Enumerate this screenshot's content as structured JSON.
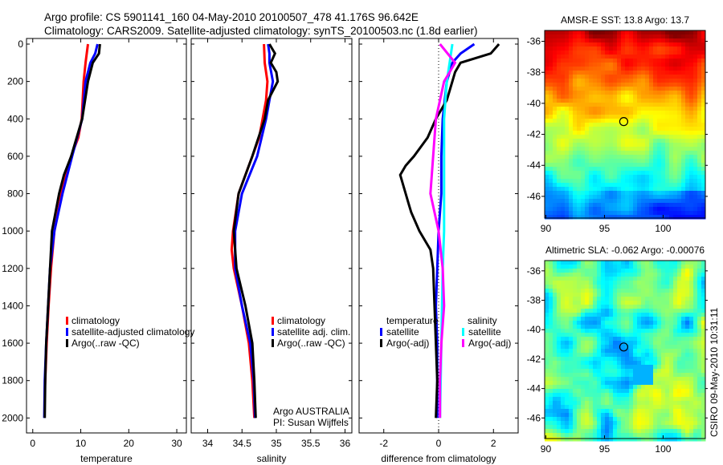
{
  "title_line1": "Argo profile: CS 5901141_160 04-May-2010 20100507_478 41.176S 96.642E",
  "title_line2": "Climatology: CARS2009. Satellite-adjusted climatology: synTS_20100503.nc (1.8d earlier)",
  "side_label": "CSIRO 09-May-2010 10:31:11",
  "chart_data": [
    {
      "type": "line",
      "id": "temp",
      "xlabel": "temperature",
      "ylabel": "",
      "xlim": [
        -1.3,
        32
      ],
      "ylim": [
        2080,
        -30
      ],
      "xticks": [
        0,
        10,
        20,
        30
      ],
      "yticks": [
        0,
        200,
        400,
        600,
        800,
        1000,
        1200,
        1400,
        1600,
        1800,
        2000
      ],
      "legend": [
        "climatology",
        "satellite-adjusted climatology",
        "Argo(..raw -QC)"
      ],
      "series": [
        {
          "name": "climatology",
          "color": "#ff0000",
          "points": [
            [
              11.5,
              0
            ],
            [
              11,
              100
            ],
            [
              10.6,
              200
            ],
            [
              10.2,
              400
            ],
            [
              9.5,
              500
            ],
            [
              8,
              600
            ],
            [
              6,
              800
            ],
            [
              4.5,
              1000
            ],
            [
              3.8,
              1200
            ],
            [
              3.3,
              1400
            ],
            [
              2.9,
              1600
            ],
            [
              2.6,
              1800
            ],
            [
              2.5,
              1850
            ]
          ]
        },
        {
          "name": "satellite-adjusted climatology",
          "color": "#0000ff",
          "points": [
            [
              13.5,
              0
            ],
            [
              13,
              50
            ],
            [
              12,
              100
            ],
            [
              11,
              200
            ],
            [
              10.3,
              400
            ],
            [
              8.2,
              600
            ],
            [
              6.2,
              800
            ],
            [
              4.5,
              1000
            ],
            [
              3.6,
              1200
            ],
            [
              3.2,
              1400
            ],
            [
              2.8,
              1600
            ],
            [
              2.5,
              1800
            ],
            [
              2.4,
              2000
            ]
          ]
        },
        {
          "name": "Argo(..raw -QC)",
          "color": "#000000",
          "points": [
            [
              14,
              0
            ],
            [
              13.8,
              50
            ],
            [
              12.5,
              100
            ],
            [
              11.5,
              200
            ],
            [
              10.3,
              400
            ],
            [
              8,
              600
            ],
            [
              6.5,
              700
            ],
            [
              5.5,
              800
            ],
            [
              4,
              1000
            ],
            [
              3.8,
              1100
            ],
            [
              3.6,
              1200
            ],
            [
              3.2,
              1400
            ],
            [
              2.8,
              1600
            ],
            [
              2.6,
              1800
            ],
            [
              2.5,
              2000
            ]
          ]
        }
      ]
    },
    {
      "type": "line",
      "id": "sal",
      "xlabel": "salinity",
      "xlim": [
        33.76,
        36.1
      ],
      "ylim": [
        2080,
        -30
      ],
      "xticks": [
        34,
        34.5,
        35,
        35.5,
        36
      ],
      "yticks": [],
      "legend": [
        "climatology",
        "satellite adj. clim.",
        "Argo(..raw -QC)"
      ],
      "annotation": [
        "Argo AUSTRALIA",
        "PI: Susan Wijffels"
      ],
      "series": [
        {
          "name": "climatology",
          "color": "#ff0000",
          "points": [
            [
              34.82,
              0
            ],
            [
              34.83,
              100
            ],
            [
              34.87,
              200
            ],
            [
              34.85,
              300
            ],
            [
              34.8,
              400
            ],
            [
              34.75,
              500
            ],
            [
              34.65,
              600
            ],
            [
              34.45,
              800
            ],
            [
              34.37,
              1000
            ],
            [
              34.35,
              1100
            ],
            [
              34.38,
              1200
            ],
            [
              34.5,
              1400
            ],
            [
              34.6,
              1600
            ],
            [
              34.65,
              1800
            ],
            [
              34.68,
              2000
            ]
          ]
        },
        {
          "name": "satellite adj. clim.",
          "color": "#0000ff",
          "points": [
            [
              34.88,
              0
            ],
            [
              34.9,
              50
            ],
            [
              34.9,
              100
            ],
            [
              34.95,
              200
            ],
            [
              34.9,
              300
            ],
            [
              34.85,
              400
            ],
            [
              34.72,
              600
            ],
            [
              34.5,
              800
            ],
            [
              34.4,
              1000
            ],
            [
              34.4,
              1200
            ],
            [
              34.5,
              1400
            ],
            [
              34.62,
              1600
            ],
            [
              34.67,
              1800
            ],
            [
              34.69,
              2000
            ]
          ]
        },
        {
          "name": "Argo(..raw -QC)",
          "color": "#000000",
          "points": [
            [
              34.9,
              0
            ],
            [
              34.98,
              50
            ],
            [
              34.92,
              100
            ],
            [
              35.0,
              150
            ],
            [
              35.02,
              200
            ],
            [
              34.88,
              300
            ],
            [
              34.83,
              400
            ],
            [
              34.65,
              600
            ],
            [
              34.45,
              800
            ],
            [
              34.38,
              1000
            ],
            [
              34.42,
              1200
            ],
            [
              34.55,
              1400
            ],
            [
              34.65,
              1600
            ],
            [
              34.68,
              1800
            ],
            [
              34.7,
              2000
            ]
          ]
        }
      ]
    },
    {
      "type": "line",
      "id": "diff",
      "xlabel": "difference from climatology",
      "xlim": [
        -2.9,
        2.9
      ],
      "ylim": [
        2080,
        -30
      ],
      "xticks": [
        -2,
        0,
        2
      ],
      "yticks": [],
      "legend_headers": [
        "temperature",
        "salinity"
      ],
      "legend": [
        "satellite",
        "Argo(-adj)",
        "satellite",
        "Argo(-adj)"
      ],
      "series": [
        {
          "name": "temperature satellite",
          "color": "#0000ff",
          "points": [
            [
              1.3,
              0
            ],
            [
              0.8,
              50
            ],
            [
              0.5,
              100
            ],
            [
              0.3,
              200
            ],
            [
              0.15,
              400
            ],
            [
              0.1,
              600
            ],
            [
              0.1,
              800
            ],
            [
              0,
              1000
            ],
            [
              -0.05,
              1200
            ],
            [
              -0.1,
              1400
            ],
            [
              -0.05,
              1600
            ],
            [
              -0.05,
              1800
            ],
            [
              -0.05,
              2000
            ]
          ]
        },
        {
          "name": "temperature Argo(-adj)",
          "color": "#000000",
          "points": [
            [
              2.2,
              0
            ],
            [
              1.9,
              50
            ],
            [
              0.8,
              100
            ],
            [
              0.6,
              150
            ],
            [
              0.5,
              200
            ],
            [
              0.3,
              300
            ],
            [
              -0.1,
              400
            ],
            [
              -0.4,
              500
            ],
            [
              -0.9,
              600
            ],
            [
              -1.2,
              650
            ],
            [
              -1.4,
              700
            ],
            [
              -1.2,
              800
            ],
            [
              -1.1,
              850
            ],
            [
              -1.0,
              900
            ],
            [
              -0.7,
              1000
            ],
            [
              -0.3,
              1100
            ],
            [
              -0.2,
              1200
            ],
            [
              -0.15,
              1400
            ],
            [
              -0.1,
              1600
            ],
            [
              -0.05,
              1800
            ],
            [
              -0.1,
              2000
            ]
          ]
        },
        {
          "name": "salinity satellite",
          "color": "#00ffff",
          "points": [
            [
              0.5,
              0
            ],
            [
              0.4,
              100
            ],
            [
              0.3,
              200
            ],
            [
              0.2,
              400
            ],
            [
              0.2,
              600
            ],
            [
              0.2,
              800
            ],
            [
              0.2,
              1000
            ],
            [
              0.15,
              1200
            ],
            [
              0.1,
              1600
            ],
            [
              0.05,
              2000
            ]
          ]
        },
        {
          "name": "salinity Argo(-adj)",
          "color": "#ff00ff",
          "points": [
            [
              0.05,
              0
            ],
            [
              0.6,
              100
            ],
            [
              0.4,
              150
            ],
            [
              0.2,
              200
            ],
            [
              -0.1,
              400
            ],
            [
              -0.2,
              600
            ],
            [
              -0.3,
              800
            ],
            [
              0,
              1000
            ],
            [
              0.15,
              1200
            ],
            [
              0.2,
              1400
            ],
            [
              0.1,
              1600
            ],
            [
              0.05,
              1800
            ],
            [
              0.05,
              2000
            ]
          ]
        }
      ]
    },
    {
      "type": "heatmap",
      "id": "sst",
      "title": "AMSR-E SST: 13.8 Argo: 13.7",
      "xlim": [
        89.9,
        103.6
      ],
      "ylim": [
        -47.4,
        -35.3
      ],
      "xticks": [
        90,
        95,
        100
      ],
      "yticks": [
        -36,
        -38,
        -40,
        -42,
        -44,
        -46
      ],
      "marker": [
        96.642,
        -41.176
      ]
    },
    {
      "type": "heatmap",
      "id": "sla",
      "title": "Altimetric SLA: -0.062 Argo: -0.00076",
      "xlim": [
        89.9,
        103.6
      ],
      "ylim": [
        -47.4,
        -35.3
      ],
      "xticks": [
        90,
        95,
        100
      ],
      "yticks": [
        -36,
        -38,
        -40,
        -42,
        -44,
        -46
      ],
      "marker": [
        96.642,
        -41.176
      ]
    }
  ]
}
